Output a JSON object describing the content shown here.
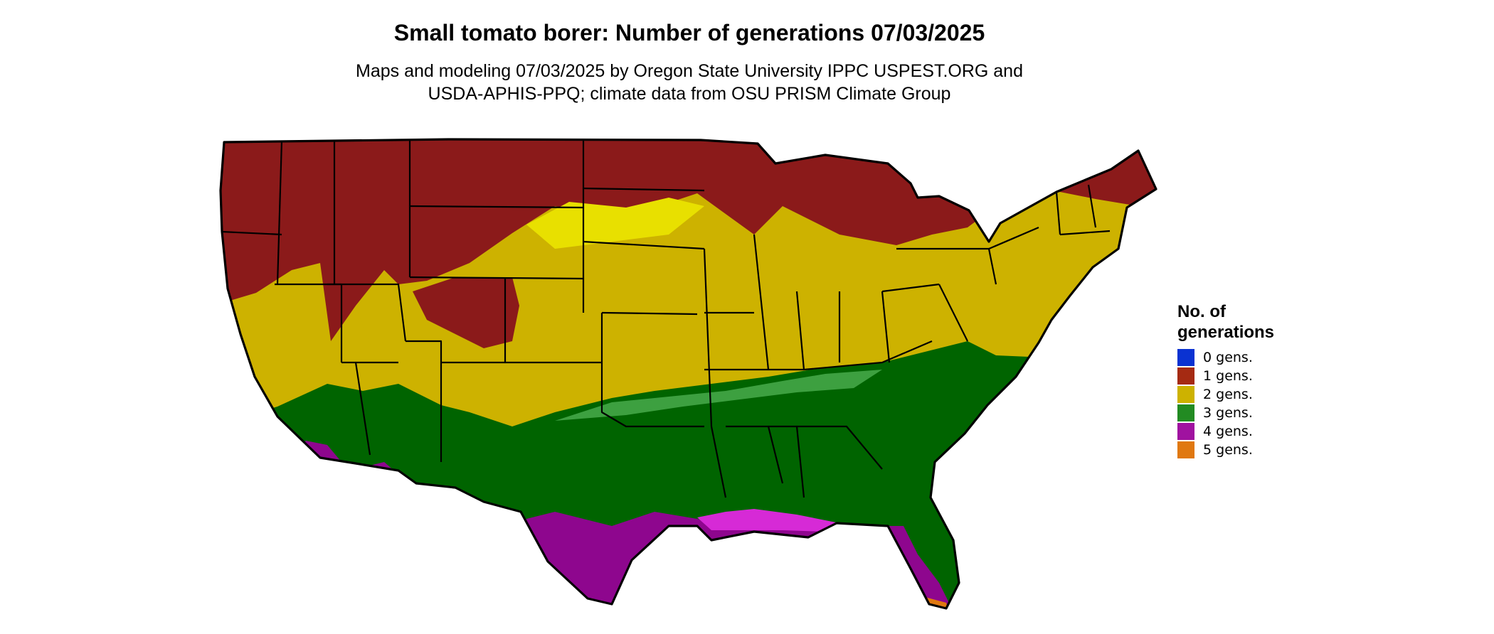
{
  "map": {
    "title": "Small tomato borer: Number of generations 07/03/2025",
    "subtitle_lines": [
      "Maps and modeling 07/03/2025 by Oregon State University IPPC USPEST.ORG and",
      "USDA-APHIS-PPQ; climate data from OSU PRISM Climate Group"
    ]
  },
  "legend": {
    "title_lines": [
      "No. of",
      "generations"
    ],
    "items": [
      {
        "label": "0 gens.",
        "color": "#0a32d2"
      },
      {
        "label": "1 gens.",
        "color": "#a52a12"
      },
      {
        "label": "2 gens.",
        "color": "#cdb200"
      },
      {
        "label": "3 gens.",
        "color": "#228b22"
      },
      {
        "label": "4 gens.",
        "color": "#a012a0"
      },
      {
        "label": "5 gens.",
        "color": "#e07810"
      }
    ]
  },
  "colors": {
    "zone_1_gens": "#8b1a1a",
    "zone_2_gens": "#cdb200",
    "zone_2_gens_light": "#e8e000",
    "zone_3_gens": "#006400",
    "zone_3_gens_light": "#4caf50",
    "zone_4_gens": "#8e068e",
    "zone_4_gens_light": "#d62ad6",
    "zone_5_gens": "#e07810",
    "boundary": "#000000"
  }
}
